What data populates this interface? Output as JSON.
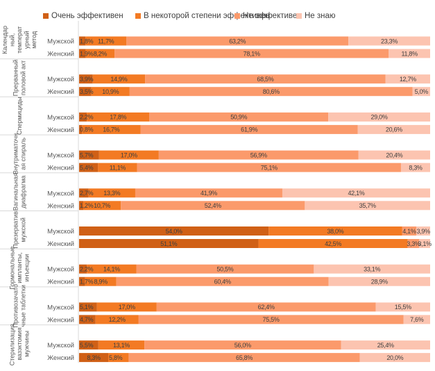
{
  "chart_data": {
    "type": "bar",
    "orientation": "horizontal",
    "stacked": true,
    "percent_stacked": true,
    "title": "",
    "xlabel": "",
    "ylabel": "",
    "xlim": [
      0,
      100
    ],
    "grid": false,
    "legend_position": "top",
    "series": [
      {
        "name": "Очень эффективен",
        "color": "#D06016"
      },
      {
        "name": "В некоторой степени эффективен",
        "color": "#F37A23"
      },
      {
        "name": "Не эффективен",
        "color": "#FB9A6B"
      },
      {
        "name": "Не знаю",
        "color": "#FCC4B0"
      }
    ],
    "groups": [
      {
        "category": "Календарный, температурный метод",
        "label_lines": [
          "Календар",
          "ный,",
          "температ",
          "урный",
          "метод"
        ],
        "rows": [
          {
            "label": "Мужской",
            "values": [
              1.8,
              11.7,
              63.2,
              23.3
            ],
            "labels": [
              "1,8%",
              "11,7%",
              "63,2%",
              "23,3%"
            ]
          },
          {
            "label": "Женский",
            "values": [
              1.9,
              8.2,
              78.1,
              11.8
            ],
            "labels": [
              "1,9%",
              "8,2%",
              "78,1%",
              "11,8%"
            ]
          }
        ]
      },
      {
        "category": "Прерванный половой акт",
        "label_lines": [
          "Прерванный",
          "половой акт"
        ],
        "rows": [
          {
            "label": "Мужской",
            "values": [
              3.9,
              14.9,
              68.5,
              12.7
            ],
            "labels": [
              "3,9%",
              "14,9%",
              "68,5%",
              "12,7%"
            ]
          },
          {
            "label": "Женский",
            "values": [
              3.5,
              10.9,
              80.6,
              5.0
            ],
            "labels": [
              "3,5%",
              "10,9%",
              "80,6%",
              "5,0%"
            ]
          }
        ]
      },
      {
        "category": "Спермициды",
        "label_lines": [
          "Спермициды"
        ],
        "rows": [
          {
            "label": "Мужской",
            "values": [
              2.2,
              17.8,
              50.9,
              29.0
            ],
            "labels": [
              "2,2%",
              "17,8%",
              "50,9%",
              "29,0%"
            ]
          },
          {
            "label": "Женский",
            "values": [
              0.8,
              16.7,
              61.9,
              20.6
            ],
            "labels": [
              "0,8%",
              "16,7%",
              "61,9%",
              "20,6%"
            ]
          }
        ]
      },
      {
        "category": "Внутриматочная спираль",
        "label_lines": [
          "Внутриматочн",
          "ая спираль"
        ],
        "rows": [
          {
            "label": "Мужской",
            "values": [
              5.7,
              17.0,
              56.9,
              20.4
            ],
            "labels": [
              "5,7%",
              "17,0%",
              "56,9%",
              "20,4%"
            ]
          },
          {
            "label": "Женский",
            "values": [
              5.4,
              11.1,
              75.1,
              8.3
            ],
            "labels": [
              "5,4%",
              "11,1%",
              "75,1%",
              "8,3%"
            ]
          }
        ]
      },
      {
        "category": "Вагинальная диафрагма",
        "label_lines": [
          "Вагинальная",
          "диафрагма"
        ],
        "rows": [
          {
            "label": "Мужской",
            "values": [
              2.7,
              13.3,
              41.9,
              42.1
            ],
            "labels": [
              "2,7%",
              "13,3%",
              "41,9%",
              "42,1%"
            ]
          },
          {
            "label": "Женский",
            "values": [
              1.2,
              10.7,
              52.4,
              35.7
            ],
            "labels": [
              "1,2%",
              "10,7%",
              "52,4%",
              "35,7%"
            ]
          }
        ]
      },
      {
        "category": "Презерватив мужской",
        "label_lines": [
          "Презерватив",
          "мужской"
        ],
        "rows": [
          {
            "label": "Мужской",
            "values": [
              54.0,
              38.0,
              4.1,
              3.9
            ],
            "labels": [
              "54,0%",
              "38,0%",
              "4,1%",
              "3,9%"
            ]
          },
          {
            "label": "Женский",
            "values": [
              51.1,
              42.5,
              3.3,
              3.1
            ],
            "labels": [
              "51,1%",
              "42,5%",
              "3,3%",
              "3,1%"
            ]
          }
        ]
      },
      {
        "category": "Гормональные импланты, инъекции",
        "label_lines": [
          "Гормональные",
          "импланты,",
          "инъекции"
        ],
        "rows": [
          {
            "label": "Мужской",
            "values": [
              2.2,
              14.1,
              50.5,
              33.1
            ],
            "labels": [
              "2,2%",
              "14,1%",
              "50,5%",
              "33,1%"
            ]
          },
          {
            "label": "Женский",
            "values": [
              1.7,
              8.9,
              60.4,
              28.9
            ],
            "labels": [
              "1,7%",
              "8,9%",
              "60,4%",
              "28,9%"
            ]
          }
        ]
      },
      {
        "category": "Противозачаточные таблетки",
        "label_lines": [
          "Противозачато",
          "чные таблетки"
        ],
        "rows": [
          {
            "label": "Мужской",
            "values": [
              5.1,
              17.0,
              62.4,
              15.5
            ],
            "labels": [
              "5,1%",
              "17,0%",
              "62,4%",
              "15,5%"
            ]
          },
          {
            "label": "Женский",
            "values": [
              4.7,
              12.2,
              75.5,
              7.6
            ],
            "labels": [
              "4,7%",
              "12,2%",
              "75,5%",
              "7,6%"
            ]
          }
        ]
      },
      {
        "category": "Стерилизация, вазэктомия мужчины",
        "label_lines": [
          "Стерилизация,",
          "вазэктомия",
          "мужчины"
        ],
        "rows": [
          {
            "label": "Мужской",
            "values": [
              5.5,
              13.1,
              56.0,
              25.4
            ],
            "labels": [
              "5,5%",
              "13,1%",
              "56,0%",
              "25,4%"
            ]
          },
          {
            "label": "Женский",
            "values": [
              8.3,
              5.8,
              65.8,
              20.0
            ],
            "labels": [
              "8,3%",
              "5,8%",
              "65,8%",
              "20,0%"
            ]
          }
        ]
      }
    ]
  }
}
